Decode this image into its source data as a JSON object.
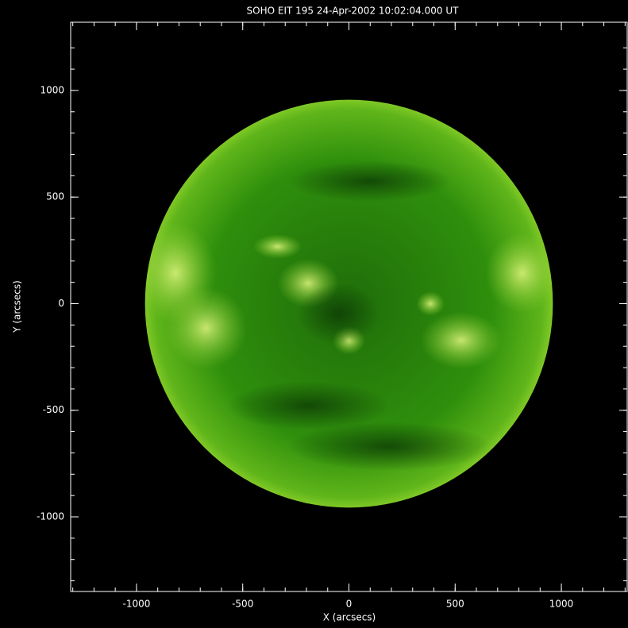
{
  "chart_data": {
    "type": "image",
    "title": "SOHO EIT 195 24-Apr-2002 10:02:04.000 UT",
    "xlabel": "X (arcsecs)",
    "ylabel": "Y (arcsecs)",
    "xlim": [
      -1310,
      1310
    ],
    "ylim": [
      -1350,
      1320
    ],
    "xticks": [
      -1000,
      -500,
      0,
      500,
      1000
    ],
    "yticks": [
      -1000,
      -500,
      0,
      500,
      1000
    ],
    "xminor_ticks": [
      -1300,
      -1200,
      -1100,
      -1000,
      -900,
      -800,
      -700,
      -600,
      -500,
      -400,
      -300,
      -200,
      -100,
      0,
      100,
      200,
      300,
      400,
      500,
      600,
      700,
      800,
      900,
      1000,
      1100,
      1200,
      1300
    ],
    "yminor_ticks": [
      -1300,
      -1200,
      -1100,
      -1000,
      -900,
      -800,
      -700,
      -600,
      -500,
      -400,
      -300,
      -200,
      -100,
      0,
      100,
      200,
      300,
      400,
      500,
      600,
      700,
      800,
      900,
      1000,
      1100,
      1200
    ],
    "disk": {
      "x": 0,
      "y": 0,
      "radius": 960
    },
    "color": "#2f8f0c"
  }
}
